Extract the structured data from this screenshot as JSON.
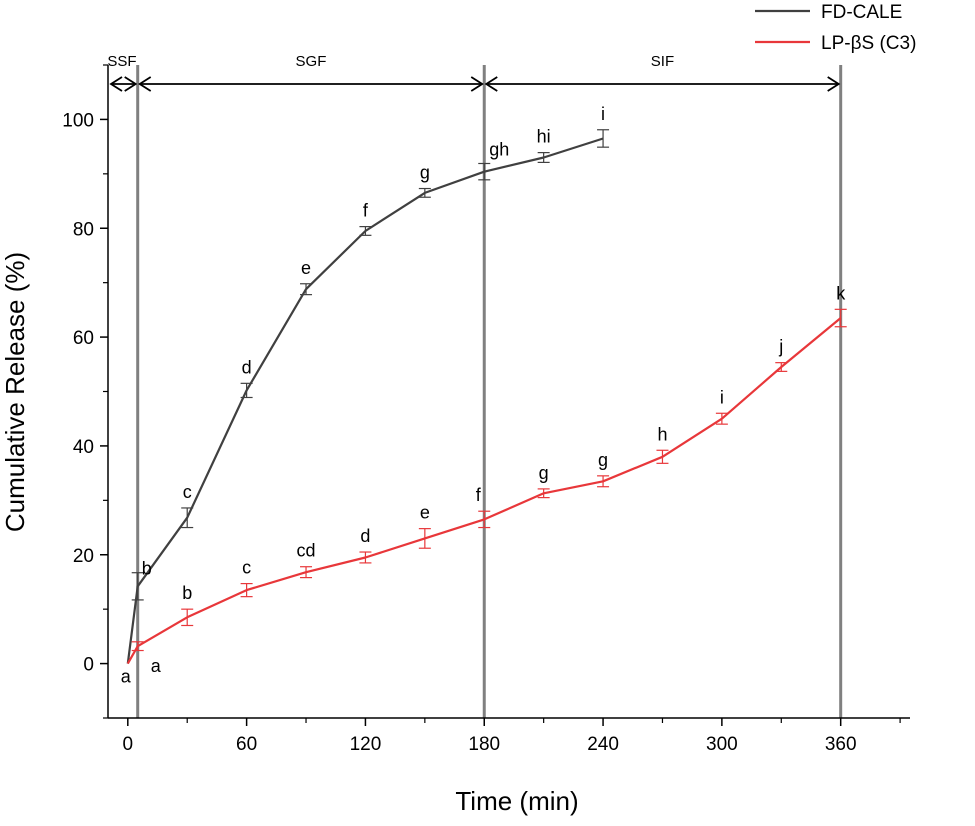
{
  "chart_data": {
    "type": "line",
    "xlabel": "Time (min)",
    "ylabel": "Cumulative Release (%)",
    "xlim": [
      -10,
      395
    ],
    "ylim": [
      -10,
      110
    ],
    "x_ticks": [
      0,
      60,
      120,
      180,
      240,
      300,
      360
    ],
    "y_ticks": [
      0,
      20,
      40,
      60,
      80,
      100
    ],
    "grid": false,
    "legend_placement": "top-right",
    "phase_lines": [
      5,
      180,
      360
    ],
    "phases": [
      {
        "label": "SSF",
        "start": 0,
        "end": 5
      },
      {
        "label": "SGF",
        "start": 5,
        "end": 180
      },
      {
        "label": "SIF",
        "start": 180,
        "end": 360
      }
    ],
    "series": [
      {
        "name": "FD-CALE",
        "color": "#404040",
        "x": [
          0,
          5,
          30,
          60,
          90,
          120,
          150,
          180,
          210,
          240
        ],
        "y": [
          0,
          14.2,
          26.8,
          50.2,
          68.8,
          79.5,
          86.5,
          90.4,
          93.0,
          96.5
        ],
        "err": [
          0,
          2.5,
          1.8,
          1.3,
          1.0,
          0.8,
          0.8,
          1.5,
          0.9,
          1.6
        ],
        "letters": [
          "a",
          "b",
          "c",
          "d",
          "e",
          "f",
          "g",
          "gh",
          "hi",
          "i"
        ]
      },
      {
        "name": "LP-βS (C3)",
        "color": "#e8373a",
        "x": [
          0,
          5,
          30,
          60,
          90,
          120,
          150,
          180,
          210,
          240,
          270,
          300,
          330,
          360
        ],
        "y": [
          0,
          3.2,
          8.5,
          13.5,
          16.8,
          19.5,
          23.0,
          26.5,
          31.3,
          33.5,
          38.0,
          45.0,
          54.5,
          63.5
        ],
        "err": [
          0,
          0.8,
          1.5,
          1.2,
          1.0,
          1.0,
          1.8,
          1.5,
          0.8,
          1.0,
          1.2,
          1.0,
          0.8,
          1.6
        ],
        "letters": [
          "a",
          "a",
          "b",
          "c",
          "cd",
          "d",
          "e",
          "f",
          "g",
          "g",
          "h",
          "i",
          "j",
          "k"
        ]
      }
    ]
  }
}
